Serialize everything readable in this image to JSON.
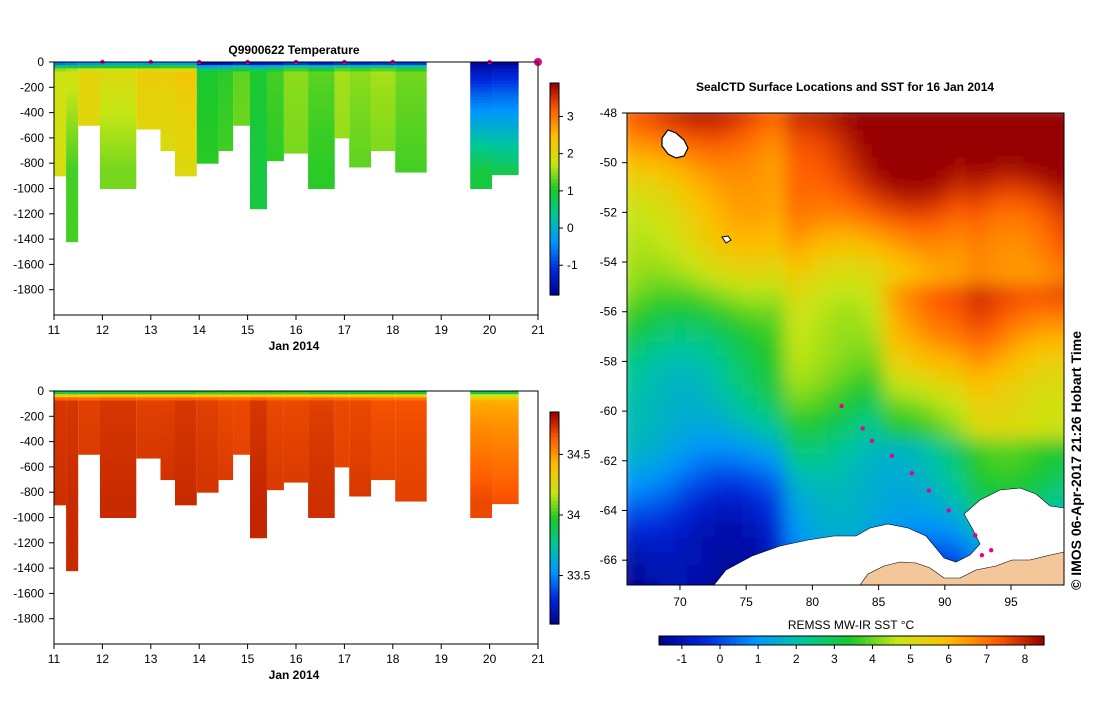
{
  "credit": "© IMOS 06-Apr-2017 21:26 Hobart Time",
  "chart_data": [
    {
      "id": "temperature-section",
      "type": "heatmap",
      "title": "Q9900622  Temperature",
      "xlabel": "Jan 2014",
      "ylabel": "",
      "xlim": [
        11,
        21
      ],
      "ylim": [
        -2000,
        0
      ],
      "x_ticks": [
        11,
        12,
        13,
        14,
        15,
        16,
        17,
        18,
        19,
        20,
        21
      ],
      "y_ticks": [
        0,
        -200,
        -400,
        -600,
        -800,
        -1000,
        -1200,
        -1400,
        -1600,
        -1800
      ],
      "colorbar": {
        "min": -1.8,
        "max": 3.9,
        "ticks": [
          -1,
          0,
          1,
          2,
          3
        ]
      },
      "profile_marker_days": [
        12.0,
        13.0,
        14.0,
        15.0,
        16.0,
        17.0,
        18.0,
        20.0,
        21.0
      ],
      "profiles": [
        {
          "x0": 11.0,
          "x1": 11.25,
          "max_depth": 900,
          "top": -0.6,
          "mid": 1.8,
          "deep": 1.9
        },
        {
          "x0": 11.25,
          "x1": 11.5,
          "max_depth": 1420,
          "top": -0.5,
          "mid": 1.9,
          "deep": 1.2
        },
        {
          "x0": 11.5,
          "x1": 11.95,
          "max_depth": 500,
          "top": -0.4,
          "mid": 2.1,
          "deep": 2.0
        },
        {
          "x0": 11.95,
          "x1": 12.7,
          "max_depth": 1000,
          "top": -0.2,
          "mid": 2.0,
          "deep": 1.4
        },
        {
          "x0": 12.7,
          "x1": 13.2,
          "max_depth": 530,
          "top": -0.3,
          "mid": 2.2,
          "deep": 2.0
        },
        {
          "x0": 13.2,
          "x1": 13.5,
          "max_depth": 700,
          "top": -0.2,
          "mid": 2.2,
          "deep": 1.9
        },
        {
          "x0": 13.5,
          "x1": 13.95,
          "max_depth": 900,
          "top": -0.3,
          "mid": 2.3,
          "deep": 2.0
        },
        {
          "x0": 13.95,
          "x1": 14.4,
          "max_depth": 800,
          "top": -1.5,
          "mid": 1.0,
          "deep": 1.1
        },
        {
          "x0": 14.4,
          "x1": 14.7,
          "max_depth": 700,
          "top": -1.5,
          "mid": 1.1,
          "deep": 1.2
        },
        {
          "x0": 14.7,
          "x1": 15.05,
          "max_depth": 500,
          "top": -1.2,
          "mid": 1.3,
          "deep": 1.4
        },
        {
          "x0": 15.05,
          "x1": 15.4,
          "max_depth": 1160,
          "top": -1.4,
          "mid": 1.0,
          "deep": 0.9
        },
        {
          "x0": 15.4,
          "x1": 15.75,
          "max_depth": 780,
          "top": -1.3,
          "mid": 1.2,
          "deep": 1.1
        },
        {
          "x0": 15.75,
          "x1": 16.25,
          "max_depth": 720,
          "top": -1.0,
          "mid": 1.5,
          "deep": 1.4
        },
        {
          "x0": 16.25,
          "x1": 16.8,
          "max_depth": 1000,
          "top": -1.2,
          "mid": 1.3,
          "deep": 1.1
        },
        {
          "x0": 16.8,
          "x1": 17.1,
          "max_depth": 600,
          "top": -1.0,
          "mid": 1.6,
          "deep": 1.5
        },
        {
          "x0": 17.1,
          "x1": 17.55,
          "max_depth": 830,
          "top": -1.1,
          "mid": 1.5,
          "deep": 1.3
        },
        {
          "x0": 17.55,
          "x1": 18.05,
          "max_depth": 700,
          "top": -1.0,
          "mid": 1.6,
          "deep": 1.4
        },
        {
          "x0": 18.05,
          "x1": 18.7,
          "max_depth": 870,
          "top": -1.0,
          "mid": 1.4,
          "deep": 1.2
        },
        {
          "x0": 19.6,
          "x1": 20.05,
          "max_depth": 1000,
          "top": -1.7,
          "mid": -1.4,
          "deep": 0.9
        },
        {
          "x0": 20.05,
          "x1": 20.6,
          "max_depth": 890,
          "top": -1.7,
          "mid": -1.3,
          "deep": 0.8
        }
      ]
    },
    {
      "id": "salinity-section",
      "type": "heatmap",
      "title": "",
      "xlabel": "Jan 2014",
      "ylabel": "",
      "xlim": [
        11,
        21
      ],
      "ylim": [
        -2000,
        0
      ],
      "x_ticks": [
        11,
        12,
        13,
        14,
        15,
        16,
        17,
        18,
        19,
        20,
        21
      ],
      "y_ticks": [
        0,
        -200,
        -400,
        -600,
        -800,
        -1000,
        -1200,
        -1400,
        -1600,
        -1800
      ],
      "colorbar": {
        "min": 33.1,
        "max": 34.85,
        "ticks": [
          33.5,
          34,
          34.5
        ]
      },
      "profiles": [
        {
          "x0": 11.0,
          "x1": 11.25,
          "max_depth": 900,
          "top": 33.9,
          "mid": 34.72,
          "deep": 34.74
        },
        {
          "x0": 11.25,
          "x1": 11.5,
          "max_depth": 1420,
          "top": 33.9,
          "mid": 34.72,
          "deep": 34.75
        },
        {
          "x0": 11.5,
          "x1": 11.95,
          "max_depth": 500,
          "top": 33.9,
          "mid": 34.7,
          "deep": 34.72
        },
        {
          "x0": 11.95,
          "x1": 12.7,
          "max_depth": 1000,
          "top": 33.95,
          "mid": 34.72,
          "deep": 34.75
        },
        {
          "x0": 12.7,
          "x1": 13.2,
          "max_depth": 530,
          "top": 33.95,
          "mid": 34.7,
          "deep": 34.73
        },
        {
          "x0": 13.2,
          "x1": 13.5,
          "max_depth": 700,
          "top": 33.95,
          "mid": 34.7,
          "deep": 34.74
        },
        {
          "x0": 13.5,
          "x1": 13.95,
          "max_depth": 900,
          "top": 33.95,
          "mid": 34.72,
          "deep": 34.75
        },
        {
          "x0": 13.95,
          "x1": 14.4,
          "max_depth": 800,
          "top": 34.0,
          "mid": 34.7,
          "deep": 34.73
        },
        {
          "x0": 14.4,
          "x1": 14.7,
          "max_depth": 700,
          "top": 34.0,
          "mid": 34.68,
          "deep": 34.72
        },
        {
          "x0": 14.7,
          "x1": 15.05,
          "max_depth": 500,
          "top": 34.0,
          "mid": 34.68,
          "deep": 34.7
        },
        {
          "x0": 15.05,
          "x1": 15.4,
          "max_depth": 1160,
          "top": 34.0,
          "mid": 34.72,
          "deep": 34.76
        },
        {
          "x0": 15.4,
          "x1": 15.75,
          "max_depth": 780,
          "top": 34.0,
          "mid": 34.68,
          "deep": 34.72
        },
        {
          "x0": 15.75,
          "x1": 16.25,
          "max_depth": 720,
          "top": 34.0,
          "mid": 34.68,
          "deep": 34.72
        },
        {
          "x0": 16.25,
          "x1": 16.8,
          "max_depth": 1000,
          "top": 33.95,
          "mid": 34.7,
          "deep": 34.74
        },
        {
          "x0": 16.8,
          "x1": 17.1,
          "max_depth": 600,
          "top": 33.95,
          "mid": 34.68,
          "deep": 34.7
        },
        {
          "x0": 17.1,
          "x1": 17.55,
          "max_depth": 830,
          "top": 33.95,
          "mid": 34.68,
          "deep": 34.72
        },
        {
          "x0": 17.55,
          "x1": 18.05,
          "max_depth": 700,
          "top": 33.95,
          "mid": 34.66,
          "deep": 34.7
        },
        {
          "x0": 18.05,
          "x1": 18.7,
          "max_depth": 870,
          "top": 33.95,
          "mid": 34.66,
          "deep": 34.7
        },
        {
          "x0": 19.6,
          "x1": 20.05,
          "max_depth": 1000,
          "top": 33.9,
          "mid": 34.45,
          "deep": 34.68
        },
        {
          "x0": 20.05,
          "x1": 20.6,
          "max_depth": 890,
          "top": 33.9,
          "mid": 34.45,
          "deep": 34.66
        }
      ]
    },
    {
      "id": "sst-map",
      "type": "heatmap",
      "title": "SealCTD Surface Locations and SST for 16 Jan 2014",
      "xlabel": "",
      "ylabel": "",
      "xlim": [
        66,
        99
      ],
      "ylim": [
        -67,
        -48
      ],
      "x_ticks": [
        70,
        75,
        80,
        85,
        90,
        95
      ],
      "y_ticks": [
        -48,
        -50,
        -52,
        -54,
        -56,
        -58,
        -60,
        -62,
        -64,
        -66
      ],
      "colorbar": {
        "label": "REMSS MW-IR SST °C",
        "min": -1.6,
        "max": 8.5,
        "ticks": [
          -1,
          0,
          1,
          2,
          3,
          4,
          5,
          6,
          7,
          8
        ]
      },
      "surface_locations": [
        {
          "lon": 82.2,
          "lat": -59.8
        },
        {
          "lon": 83.8,
          "lat": -60.7
        },
        {
          "lon": 84.5,
          "lat": -61.2
        },
        {
          "lon": 86.0,
          "lat": -61.8
        },
        {
          "lon": 87.5,
          "lat": -62.5
        },
        {
          "lon": 88.8,
          "lat": -63.2
        },
        {
          "lon": 90.3,
          "lat": -64.0
        },
        {
          "lon": 92.3,
          "lat": -65.0
        },
        {
          "lon": 93.5,
          "lat": -65.6
        },
        {
          "lon": 92.8,
          "lat": -65.8
        }
      ]
    }
  ]
}
